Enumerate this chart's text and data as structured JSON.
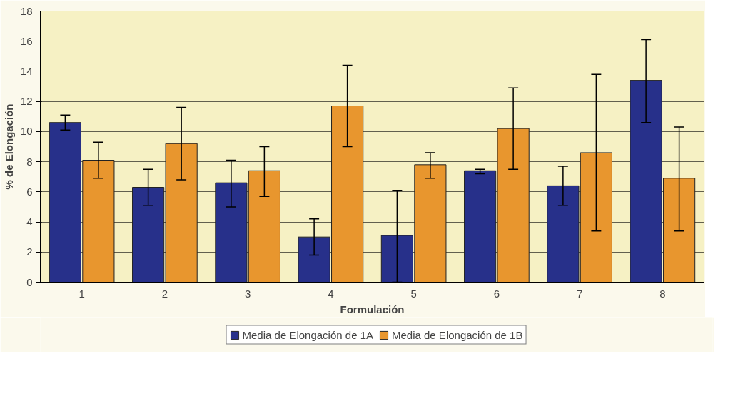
{
  "chart_data": {
    "type": "bar",
    "xlabel": "Formulación",
    "ylabel": "% de Elongación",
    "categories": [
      "1",
      "2",
      "3",
      "4",
      "5",
      "6",
      "7",
      "8"
    ],
    "series": [
      {
        "name": "Media de Elongación de 1A",
        "color": "#27308a",
        "values": [
          10.6,
          6.3,
          6.6,
          3.0,
          3.1,
          7.4,
          6.4,
          13.4
        ],
        "errors": [
          [
            10.1,
            11.1
          ],
          [
            5.1,
            7.5
          ],
          [
            5.0,
            8.1
          ],
          [
            1.8,
            4.2
          ],
          [
            0,
            6.1
          ],
          [
            7.2,
            7.5
          ],
          [
            5.1,
            7.7
          ],
          [
            10.6,
            16.1
          ]
        ]
      },
      {
        "name": "Media de Elongación de 1B",
        "color": "#e8962e",
        "values": [
          8.1,
          9.2,
          7.4,
          11.7,
          7.8,
          10.2,
          8.6,
          6.9
        ],
        "errors": [
          [
            6.9,
            9.3
          ],
          [
            6.8,
            11.6
          ],
          [
            5.7,
            9.0
          ],
          [
            9.0,
            14.4
          ],
          [
            6.9,
            8.6
          ],
          [
            7.5,
            12.9
          ],
          [
            3.4,
            13.8
          ],
          [
            3.4,
            10.3
          ]
        ]
      }
    ],
    "ylim": [
      0,
      18
    ],
    "yticks": [
      0,
      2,
      4,
      6,
      8,
      10,
      12,
      14,
      16,
      18
    ],
    "grid": "y",
    "legend": "bottom"
  }
}
